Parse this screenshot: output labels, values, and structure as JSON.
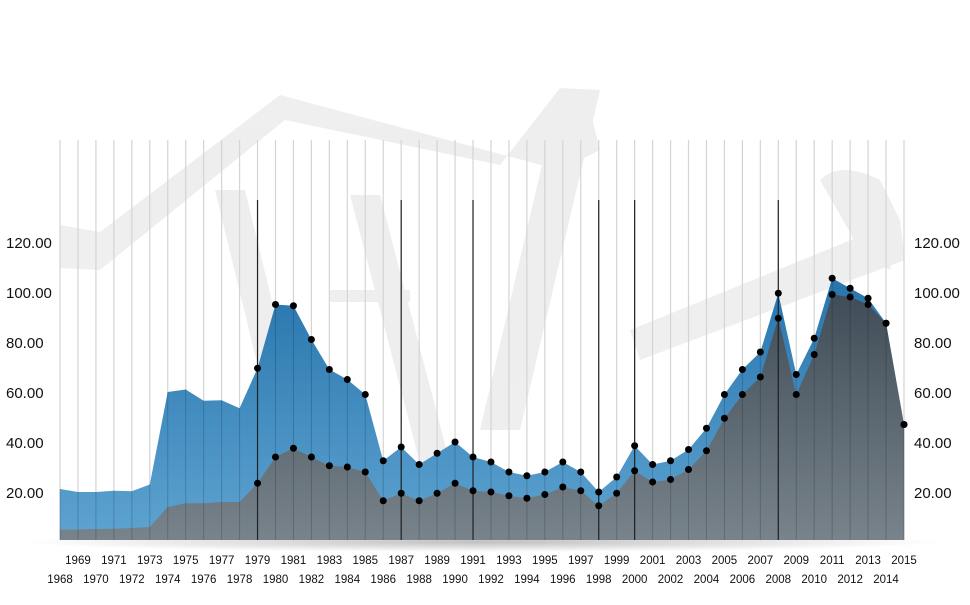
{
  "chart_data": {
    "type": "area",
    "title": "",
    "xlabel": "",
    "ylabel": "",
    "x": [
      1968,
      1969,
      1970,
      1971,
      1972,
      1973,
      1974,
      1975,
      1976,
      1977,
      1978,
      1979,
      1980,
      1981,
      1982,
      1983,
      1984,
      1985,
      1986,
      1987,
      1988,
      1989,
      1990,
      1991,
      1992,
      1993,
      1994,
      1995,
      1996,
      1997,
      1998,
      1999,
      2000,
      2001,
      2002,
      2003,
      2004,
      2005,
      2006,
      2007,
      2008,
      2009,
      2010,
      2011,
      2012,
      2013,
      2014,
      2015
    ],
    "ylim": [
      0,
      130
    ],
    "yticks": [
      "20.00",
      "40.00",
      "60.00",
      "80.00",
      "100.00",
      "120.00"
    ],
    "ytick_values": [
      20,
      40,
      60,
      80,
      100,
      120
    ],
    "y_axis_sides": [
      "left",
      "right"
    ],
    "grid": "vertical lines per year",
    "highlight_years": [
      1979,
      1987,
      1991,
      1998,
      2000,
      2008
    ],
    "markers_from_year": 1979,
    "series": [
      {
        "color": "#2f7fb8",
        "values": [
          21.2,
          20,
          20,
          20.5,
          20.3,
          23,
          60,
          61,
          56.5,
          56.7,
          53.5,
          69.5,
          95,
          94.5,
          81,
          69,
          65,
          59,
          32.5,
          38,
          31,
          35.5,
          40,
          34,
          32,
          28,
          26.5,
          28,
          32,
          28,
          20,
          26,
          38.5,
          31,
          32.5,
          37,
          45.5,
          59,
          69,
          76,
          99.5,
          67,
          81.5,
          105.5,
          101.5,
          97.5,
          87.5,
          47
        ]
      },
      {
        "color": "#55616b",
        "values": [
          5,
          5,
          5.2,
          5.3,
          5.6,
          6,
          14,
          15.5,
          15.5,
          16,
          16,
          23.5,
          34,
          37.5,
          34,
          30.5,
          30,
          28,
          16.5,
          19.5,
          16.5,
          19.5,
          23.5,
          20.5,
          20,
          18.5,
          17.5,
          19,
          22,
          20.5,
          14.5,
          19.5,
          28.5,
          24,
          25,
          29,
          36.5,
          49.5,
          59,
          66,
          89.5,
          59,
          75,
          99,
          98,
          95,
          87.5,
          47
        ]
      }
    ],
    "background": "pump-jack watermark"
  }
}
